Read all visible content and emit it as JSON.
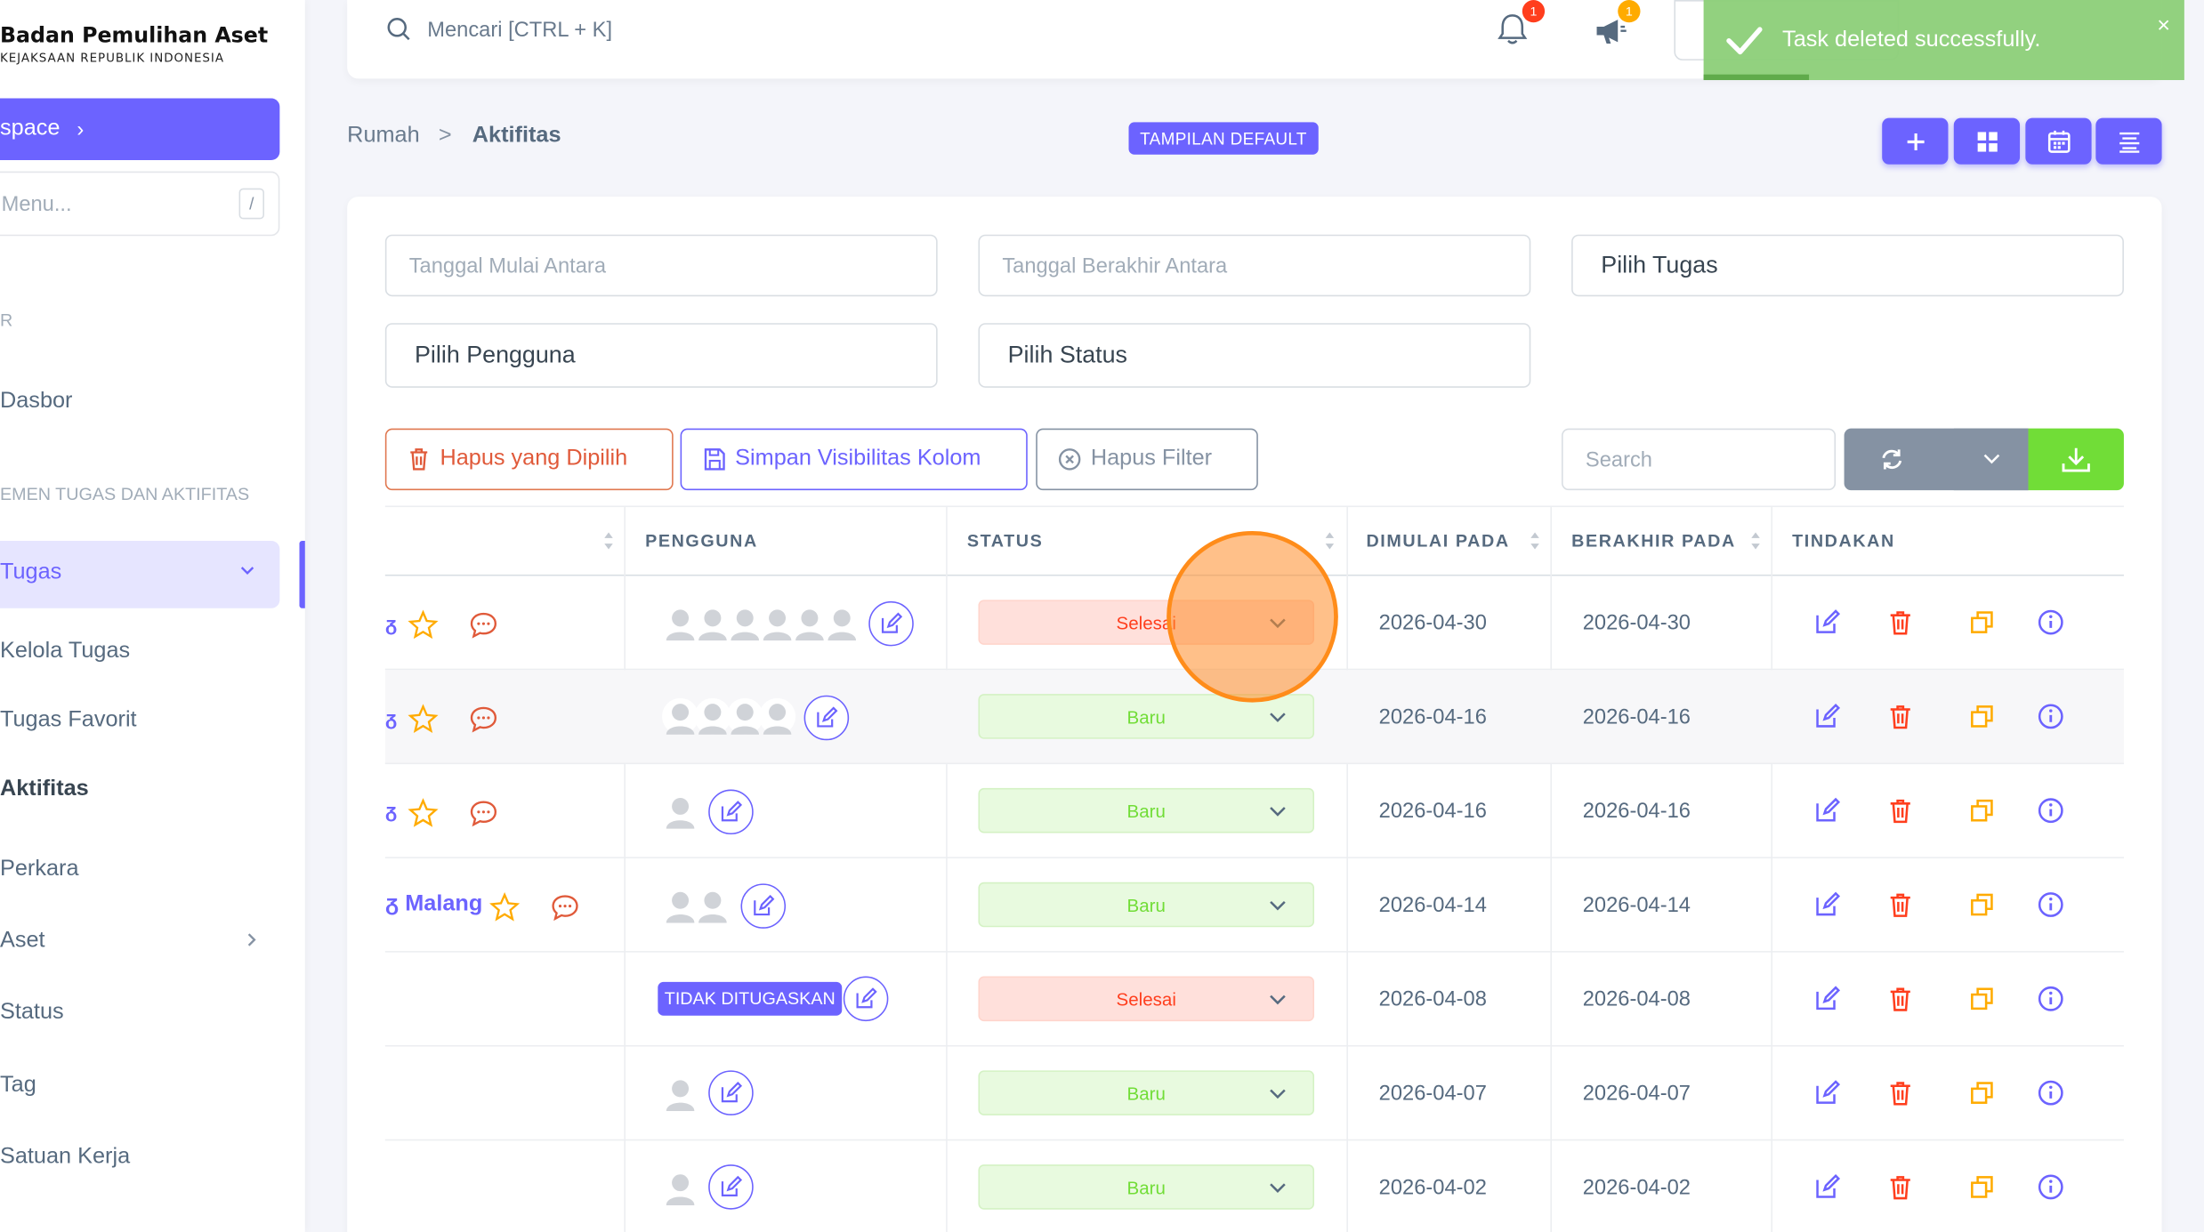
{
  "brand": {
    "title": "Badan Pemulihan Aset",
    "subtitle": "KEJAKSAAN REPUBLIK INDONESIA"
  },
  "sidebar": {
    "workspace_label": "space",
    "menu_search_placeholder": "Menu...",
    "menu_search_kbd": "/",
    "header_1": "R",
    "header_2": "EMEN TUGAS DAN AKTIFITAS",
    "items": {
      "dasbor": "Dasbor",
      "tugas": "Tugas",
      "kelola_tugas": "Kelola Tugas",
      "tugas_favorit": "Tugas Favorit",
      "aktifitas": "Aktifitas",
      "perkara": "Perkara",
      "aset": "Aset",
      "status": "Status",
      "tag": "Tag",
      "satuan_kerja": "Satuan Kerja"
    }
  },
  "navbar": {
    "search_placeholder": "Mencari [CTRL + K]",
    "notif_count": "1",
    "announce_count": "1"
  },
  "toast": {
    "message": "Task deleted successfully.",
    "close": "×"
  },
  "breadcrumb": {
    "home": "Rumah",
    "separator": ">",
    "current": "Aktifitas"
  },
  "view_badge": "TAMPILAN DEFAULT",
  "filters": {
    "start_range": "Tanggal Mulai Antara",
    "end_range": "Tanggal Berakhir Antara",
    "task": "Pilih Tugas",
    "user": "Pilih Pengguna",
    "status": "Pilih Status"
  },
  "actions": {
    "delete_selected": "Hapus yang Dipilih",
    "save_visibility": "Simpan Visibilitas Kolom",
    "clear_filter": "Hapus Filter",
    "search_placeholder": "Search"
  },
  "table": {
    "headers": {
      "user": "PENGGUNA",
      "status": "STATUS",
      "start": "DIMULAI PADA",
      "end": "BERAKHIR PADA",
      "actions": "TINDAKAN"
    },
    "rows": [
      {
        "name": "",
        "status": "Selesai",
        "start": "2026-04-30",
        "end": "2026-04-30"
      },
      {
        "name": "",
        "status": "Baru",
        "start": "2026-04-16",
        "end": "2026-04-16"
      },
      {
        "name": "",
        "status": "Baru",
        "start": "2026-04-16",
        "end": "2026-04-16"
      },
      {
        "name": "Malang",
        "status": "Baru",
        "start": "2026-04-14",
        "end": "2026-04-14"
      },
      {
        "name": "",
        "status": "Selesai",
        "start": "2026-04-08",
        "end": "2026-04-08",
        "unassigned": "TIDAK DITUGASKAN"
      },
      {
        "name": "",
        "status": "Baru",
        "start": "2026-04-07",
        "end": "2026-04-07"
      },
      {
        "name": "",
        "status": "Baru",
        "start": "2026-04-02",
        "end": "2026-04-02"
      }
    ]
  },
  "colors": {
    "primary": "#6c63ff",
    "danger": "#ff3e1d",
    "success": "#71dd37",
    "warning": "#ffab00",
    "secondary": "#8592a3"
  }
}
